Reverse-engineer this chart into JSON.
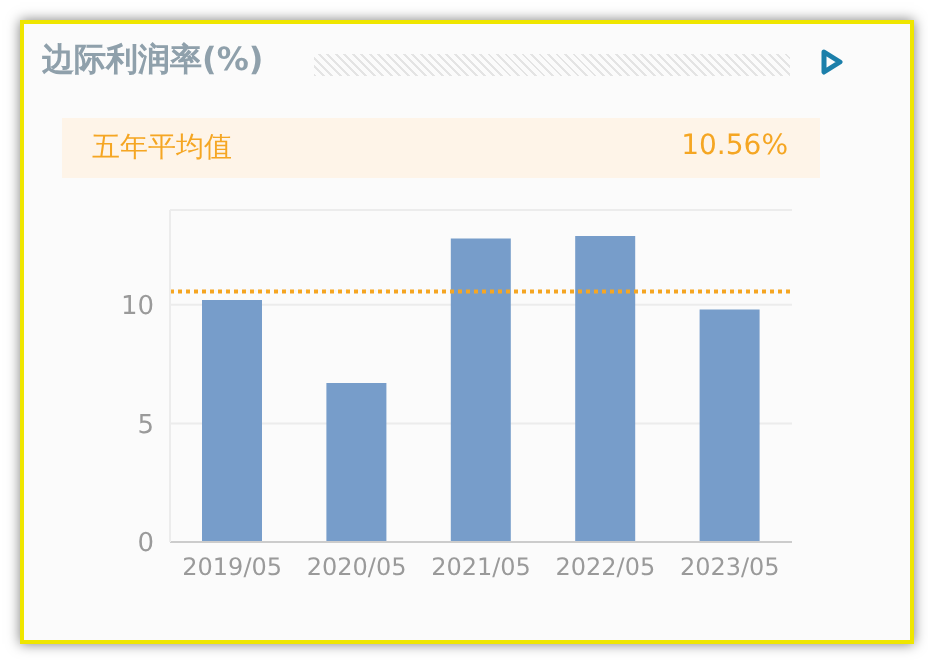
{
  "chart_data": {
    "type": "bar",
    "title": "边际利润率(%)",
    "categories": [
      "2019/05",
      "2020/05",
      "2021/05",
      "2022/05",
      "2023/05"
    ],
    "values": [
      10.2,
      6.7,
      12.8,
      12.9,
      9.8
    ],
    "color": "#779dca",
    "ylim": [
      0,
      14
    ],
    "yticks": [
      0,
      5,
      10
    ],
    "grid": "y",
    "ref_lines": [
      {
        "axis": "y",
        "value": 10.56,
        "color": "#f5a623",
        "line_style": "dotted"
      }
    ],
    "annotations": [
      "五年平均值",
      "10.56%"
    ]
  }
}
